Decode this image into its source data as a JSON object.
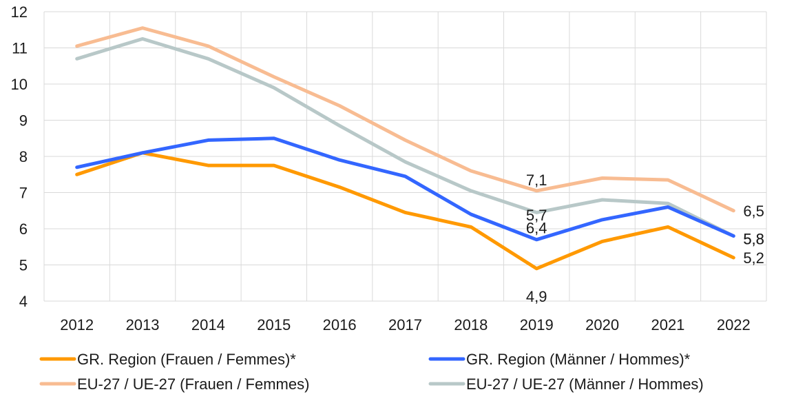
{
  "chart_data": {
    "type": "line",
    "title": "",
    "xlabel": "",
    "ylabel": "",
    "categories": [
      "2012",
      "2013",
      "2014",
      "2015",
      "2016",
      "2017",
      "2018",
      "2019",
      "2020",
      "2021",
      "2022"
    ],
    "ylim": [
      4,
      12
    ],
    "yticks": [
      4,
      5,
      6,
      7,
      8,
      9,
      10,
      11,
      12
    ],
    "grid": true,
    "legend_position": "bottom",
    "series": [
      {
        "name": "GR. Region (Frauen / Femmes)*",
        "color": "#ff9900",
        "values": [
          7.5,
          8.1,
          7.75,
          7.75,
          7.15,
          6.45,
          6.05,
          4.9,
          5.65,
          6.05,
          5.2
        ]
      },
      {
        "name": "GR. Region (Männer / Hommes)*",
        "color": "#3366ff",
        "values": [
          7.7,
          8.1,
          8.45,
          8.5,
          7.9,
          7.45,
          6.4,
          5.7,
          6.25,
          6.6,
          5.8
        ]
      },
      {
        "name": "EU-27 / UE-27 (Frauen / Femmes)",
        "color": "#f8bc92",
        "values": [
          11.05,
          11.55,
          11.05,
          10.2,
          9.4,
          8.45,
          7.6,
          7.05,
          7.4,
          7.35,
          6.5
        ]
      },
      {
        "name": "EU-27 / UE-27 (Männer / Hommes)",
        "color": "#b8c8c8",
        "values": [
          10.7,
          11.25,
          10.7,
          9.9,
          8.85,
          7.85,
          7.05,
          6.45,
          6.8,
          6.7,
          5.8
        ]
      }
    ],
    "data_labels": [
      {
        "series": 2,
        "category": "2019",
        "text": "7,1"
      },
      {
        "series": 3,
        "category": "2019",
        "text": "6,4"
      },
      {
        "series": 1,
        "category": "2019",
        "text": "5,7"
      },
      {
        "series": 0,
        "category": "2019",
        "text": "4,9"
      },
      {
        "series": 2,
        "category": "2022",
        "text": "6,5"
      },
      {
        "series": 3,
        "category": "2022",
        "text": "5,8"
      },
      {
        "series": 1,
        "category": "2022",
        "text": "5,8"
      },
      {
        "series": 0,
        "category": "2022",
        "text": "5,2"
      }
    ]
  }
}
